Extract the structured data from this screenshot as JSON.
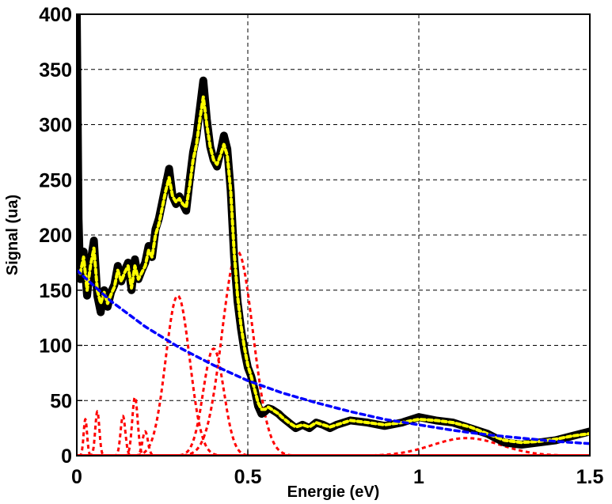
{
  "chart_data": {
    "type": "line",
    "xlabel": "Energie (eV)",
    "ylabel": "Signal (ua)",
    "xlim": [
      0,
      1.5
    ],
    "ylim": [
      0,
      400
    ],
    "x_ticks": [
      0,
      0.5,
      1,
      1.5
    ],
    "x_tick_labels": [
      "0",
      "0.5",
      "1",
      "1.5"
    ],
    "y_ticks": [
      0,
      50,
      100,
      150,
      200,
      250,
      300,
      350,
      400
    ],
    "y_tick_labels": [
      "0",
      "50",
      "100",
      "150",
      "200",
      "250",
      "300",
      "350",
      "400"
    ],
    "grid": true,
    "series": [
      {
        "style": "solid thick",
        "color": "#000000",
        "x": [
          0.0,
          0.005,
          0.01,
          0.02,
          0.03,
          0.04,
          0.05,
          0.06,
          0.07,
          0.08,
          0.09,
          0.1,
          0.11,
          0.12,
          0.13,
          0.14,
          0.15,
          0.16,
          0.17,
          0.18,
          0.19,
          0.2,
          0.21,
          0.22,
          0.23,
          0.24,
          0.25,
          0.26,
          0.27,
          0.28,
          0.29,
          0.3,
          0.31,
          0.32,
          0.33,
          0.34,
          0.35,
          0.36,
          0.37,
          0.38,
          0.39,
          0.4,
          0.41,
          0.42,
          0.43,
          0.44,
          0.45,
          0.46,
          0.47,
          0.48,
          0.49,
          0.5,
          0.51,
          0.52,
          0.53,
          0.54,
          0.55,
          0.56,
          0.57,
          0.58,
          0.59,
          0.6,
          0.62,
          0.64,
          0.66,
          0.68,
          0.7,
          0.72,
          0.74,
          0.76,
          0.78,
          0.8,
          0.85,
          0.9,
          0.95,
          1.0,
          1.05,
          1.1,
          1.15,
          1.2,
          1.25,
          1.3,
          1.35,
          1.4,
          1.45,
          1.5
        ],
        "values": [
          400,
          215,
          160,
          185,
          145,
          175,
          195,
          145,
          130,
          150,
          135,
          148,
          155,
          172,
          158,
          168,
          175,
          150,
          178,
          160,
          168,
          175,
          190,
          180,
          205,
          215,
          230,
          245,
          260,
          235,
          228,
          235,
          228,
          222,
          250,
          275,
          290,
          315,
          340,
          305,
          280,
          268,
          262,
          275,
          290,
          278,
          240,
          180,
          140,
          115,
          95,
          80,
          72,
          60,
          45,
          38,
          40,
          43,
          42,
          40,
          38,
          35,
          30,
          25,
          28,
          25,
          30,
          28,
          25,
          28,
          30,
          32,
          30,
          27,
          30,
          35,
          32,
          30,
          25,
          20,
          12,
          10,
          12,
          14,
          18,
          22
        ]
      },
      {
        "style": "dotted",
        "color": "#ffff00",
        "x": [
          0.01,
          0.02,
          0.03,
          0.04,
          0.05,
          0.06,
          0.07,
          0.08,
          0.09,
          0.1,
          0.11,
          0.12,
          0.13,
          0.14,
          0.15,
          0.16,
          0.17,
          0.18,
          0.19,
          0.2,
          0.21,
          0.22,
          0.23,
          0.24,
          0.25,
          0.26,
          0.27,
          0.28,
          0.29,
          0.3,
          0.31,
          0.32,
          0.33,
          0.34,
          0.35,
          0.36,
          0.37,
          0.38,
          0.39,
          0.4,
          0.41,
          0.42,
          0.43,
          0.44,
          0.45,
          0.46,
          0.47,
          0.48,
          0.49,
          0.5,
          0.51,
          0.52,
          0.53,
          0.54,
          0.55,
          0.56,
          0.57,
          0.58,
          0.59,
          0.6,
          0.62,
          0.64,
          0.66,
          0.68,
          0.7,
          0.72,
          0.74,
          0.76,
          0.78,
          0.8,
          0.85,
          0.9,
          0.95,
          1.0,
          1.05,
          1.1,
          1.15,
          1.2,
          1.25,
          1.3,
          1.35,
          1.4,
          1.45,
          1.5
        ],
        "values": [
          165,
          180,
          150,
          172,
          188,
          150,
          138,
          148,
          138,
          146,
          153,
          168,
          158,
          166,
          172,
          152,
          172,
          160,
          166,
          172,
          186,
          180,
          200,
          210,
          225,
          240,
          252,
          235,
          230,
          233,
          228,
          225,
          245,
          268,
          282,
          305,
          325,
          300,
          280,
          268,
          264,
          272,
          282,
          272,
          240,
          185,
          145,
          118,
          98,
          82,
          72,
          60,
          48,
          42,
          42,
          44,
          42,
          40,
          38,
          35,
          30,
          26,
          28,
          26,
          30,
          28,
          26,
          28,
          30,
          32,
          30,
          28,
          30,
          33,
          32,
          30,
          26,
          20,
          14,
          12,
          13,
          15,
          18,
          20
        ]
      },
      {
        "style": "dashed",
        "color": "#0000ff",
        "x": [
          0.0,
          0.1,
          0.2,
          0.3,
          0.4,
          0.5,
          0.6,
          0.7,
          0.8,
          0.9,
          1.0,
          1.1,
          1.2,
          1.3,
          1.4,
          1.5
        ],
        "values": [
          168,
          140,
          117,
          98,
          82,
          68,
          57,
          48,
          40,
          33,
          28,
          23,
          19,
          16,
          13,
          11
        ]
      }
    ],
    "components": [
      {
        "style": "dashed",
        "color": "#ff0000",
        "center": 0.025,
        "amplitude": 33,
        "width": 0.005
      },
      {
        "style": "dashed",
        "color": "#ff0000",
        "center": 0.06,
        "amplitude": 40,
        "width": 0.006
      },
      {
        "style": "dashed",
        "color": "#ff0000",
        "center": 0.135,
        "amplitude": 36,
        "width": 0.007
      },
      {
        "style": "dashed",
        "color": "#ff0000",
        "center": 0.17,
        "amplitude": 53,
        "width": 0.008
      },
      {
        "style": "dashed",
        "color": "#ff0000",
        "center": 0.2,
        "amplitude": 22,
        "width": 0.008
      },
      {
        "style": "dashed",
        "color": "#ff0000",
        "center": 0.295,
        "amplitude": 145,
        "width": 0.035
      },
      {
        "style": "dashed",
        "color": "#ff0000",
        "center": 0.4,
        "amplitude": 97,
        "width": 0.03
      },
      {
        "style": "dashed",
        "color": "#ff0000",
        "center": 0.47,
        "amplitude": 185,
        "width": 0.045
      },
      {
        "style": "dashed",
        "color": "#ff0000",
        "center": 1.14,
        "amplitude": 16,
        "width": 0.1
      }
    ]
  }
}
